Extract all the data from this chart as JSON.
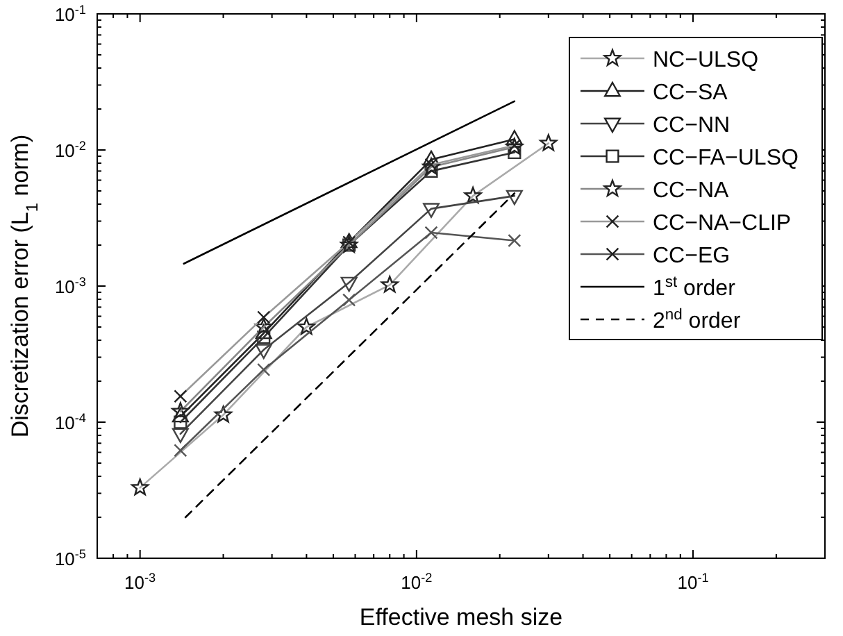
{
  "chart_data": {
    "type": "line",
    "xlabel": "Effective mesh size",
    "ylabel": "Discretization error (L$_{1}$ norm)",
    "log": "xy",
    "xlim": [
      0.0007,
      0.3
    ],
    "ylim": [
      1e-05,
      0.1
    ],
    "xticks": [
      {
        "value": 0.001,
        "label": "10$^{-3}$"
      },
      {
        "value": 0.01,
        "label": "10$^{-2}$"
      },
      {
        "value": 0.1,
        "label": "10$^{-1}$"
      },
      {
        "value": 0.0008,
        "label": null
      },
      {
        "value": 0.0009,
        "label": null
      },
      {
        "value": 0.002,
        "label": null
      },
      {
        "value": 0.003,
        "label": null
      },
      {
        "value": 0.004,
        "label": null
      },
      {
        "value": 0.005,
        "label": null
      },
      {
        "value": 0.006,
        "label": null
      },
      {
        "value": 0.007,
        "label": null
      },
      {
        "value": 0.008,
        "label": null
      },
      {
        "value": 0.009,
        "label": null
      },
      {
        "value": 0.02,
        "label": null
      },
      {
        "value": 0.03,
        "label": null
      },
      {
        "value": 0.04,
        "label": null
      },
      {
        "value": 0.05,
        "label": null
      },
      {
        "value": 0.06,
        "label": null
      },
      {
        "value": 0.07,
        "label": null
      },
      {
        "value": 0.08,
        "label": null
      },
      {
        "value": 0.09,
        "label": null
      },
      {
        "value": 0.2,
        "label": null
      }
    ],
    "yticks": [
      {
        "value": 1e-05,
        "label": "10$^{-5}$"
      },
      {
        "value": 0.0001,
        "label": "10$^{-4}$"
      },
      {
        "value": 0.001,
        "label": "10$^{-3}$"
      },
      {
        "value": 0.01,
        "label": "10$^{-2}$"
      },
      {
        "value": 0.1,
        "label": "10$^{-1}$"
      },
      {
        "value": 2e-05,
        "label": null
      },
      {
        "value": 3e-05,
        "label": null
      },
      {
        "value": 4e-05,
        "label": null
      },
      {
        "value": 5e-05,
        "label": null
      },
      {
        "value": 6e-05,
        "label": null
      },
      {
        "value": 7e-05,
        "label": null
      },
      {
        "value": 8e-05,
        "label": null
      },
      {
        "value": 9e-05,
        "label": null
      },
      {
        "value": 0.0002,
        "label": null
      },
      {
        "value": 0.0003,
        "label": null
      },
      {
        "value": 0.0004,
        "label": null
      },
      {
        "value": 0.0005,
        "label": null
      },
      {
        "value": 0.0006,
        "label": null
      },
      {
        "value": 0.0007,
        "label": null
      },
      {
        "value": 0.0008,
        "label": null
      },
      {
        "value": 0.0009,
        "label": null
      },
      {
        "value": 0.002,
        "label": null
      },
      {
        "value": 0.003,
        "label": null
      },
      {
        "value": 0.004,
        "label": null
      },
      {
        "value": 0.005,
        "label": null
      },
      {
        "value": 0.006,
        "label": null
      },
      {
        "value": 0.007,
        "label": null
      },
      {
        "value": 0.008,
        "label": null
      },
      {
        "value": 0.009,
        "label": null
      },
      {
        "value": 0.02,
        "label": null
      },
      {
        "value": 0.03,
        "label": null
      },
      {
        "value": 0.04,
        "label": null
      },
      {
        "value": 0.05,
        "label": null
      },
      {
        "value": 0.06,
        "label": null
      },
      {
        "value": 0.07,
        "label": null
      },
      {
        "value": 0.08,
        "label": null
      },
      {
        "value": 0.09,
        "label": null
      }
    ],
    "grid": false,
    "legend": "top right",
    "series": [
      {
        "name": "NC−ULSQ",
        "color": "#aaaaaa",
        "marker": "star",
        "x": [
          0.001,
          0.002,
          0.004,
          0.008,
          0.016,
          0.03
        ],
        "values": [
          3.3e-05,
          0.000113,
          0.0005,
          0.00102,
          0.0046,
          0.0112
        ]
      },
      {
        "name": "CC−SA",
        "color": "#222222",
        "marker": "triangle",
        "x": [
          0.0014,
          0.0028,
          0.0057,
          0.0113,
          0.0226
        ],
        "values": [
          0.00011,
          0.00045,
          0.0021,
          0.0085,
          0.012
        ]
      },
      {
        "name": "CC−NN",
        "color": "#444444",
        "marker": "triangle-down",
        "x": [
          0.0014,
          0.0028,
          0.0057,
          0.0113,
          0.0226
        ],
        "values": [
          8.2e-05,
          0.00034,
          0.00106,
          0.0037,
          0.0046
        ]
      },
      {
        "name": "CC−FA−ULSQ",
        "color": "#333333",
        "marker": "square",
        "x": [
          0.0014,
          0.0028,
          0.0057,
          0.0113,
          0.0226
        ],
        "values": [
          0.0001,
          0.00042,
          0.002,
          0.007,
          0.0096
        ]
      },
      {
        "name": "CC−NA",
        "color": "#888888",
        "marker": "star",
        "x": [
          0.0014,
          0.0028,
          0.0057,
          0.0113,
          0.0226
        ],
        "values": [
          0.00012,
          0.0005,
          0.002,
          0.0075,
          0.0105
        ]
      },
      {
        "name": "CC−NA−CLIP",
        "color": "#999999",
        "marker": "cross",
        "x": [
          0.0014,
          0.0028,
          0.0057,
          0.0113,
          0.0226
        ],
        "values": [
          0.000155,
          0.00059,
          0.0021,
          0.0078,
          0.0108
        ]
      },
      {
        "name": "CC−EG",
        "color": "#555555",
        "marker": "cross",
        "x": [
          0.0014,
          0.0028,
          0.0057,
          0.0113,
          0.0226
        ],
        "values": [
          6.2e-05,
          0.000243,
          0.00079,
          0.00247,
          0.00216
        ]
      },
      {
        "name": "1$^{st}$ order",
        "color": "#000000",
        "marker": "none",
        "line_style": "solid",
        "x": [
          0.00144,
          0.0226
        ],
        "values": [
          0.00146,
          0.0228
        ]
      },
      {
        "name": "2$^{nd}$ order",
        "color": "#000000",
        "marker": "none",
        "line_style": "dashed",
        "x": [
          0.00146,
          0.0226
        ],
        "values": [
          2e-05,
          0.0048
        ]
      }
    ]
  }
}
